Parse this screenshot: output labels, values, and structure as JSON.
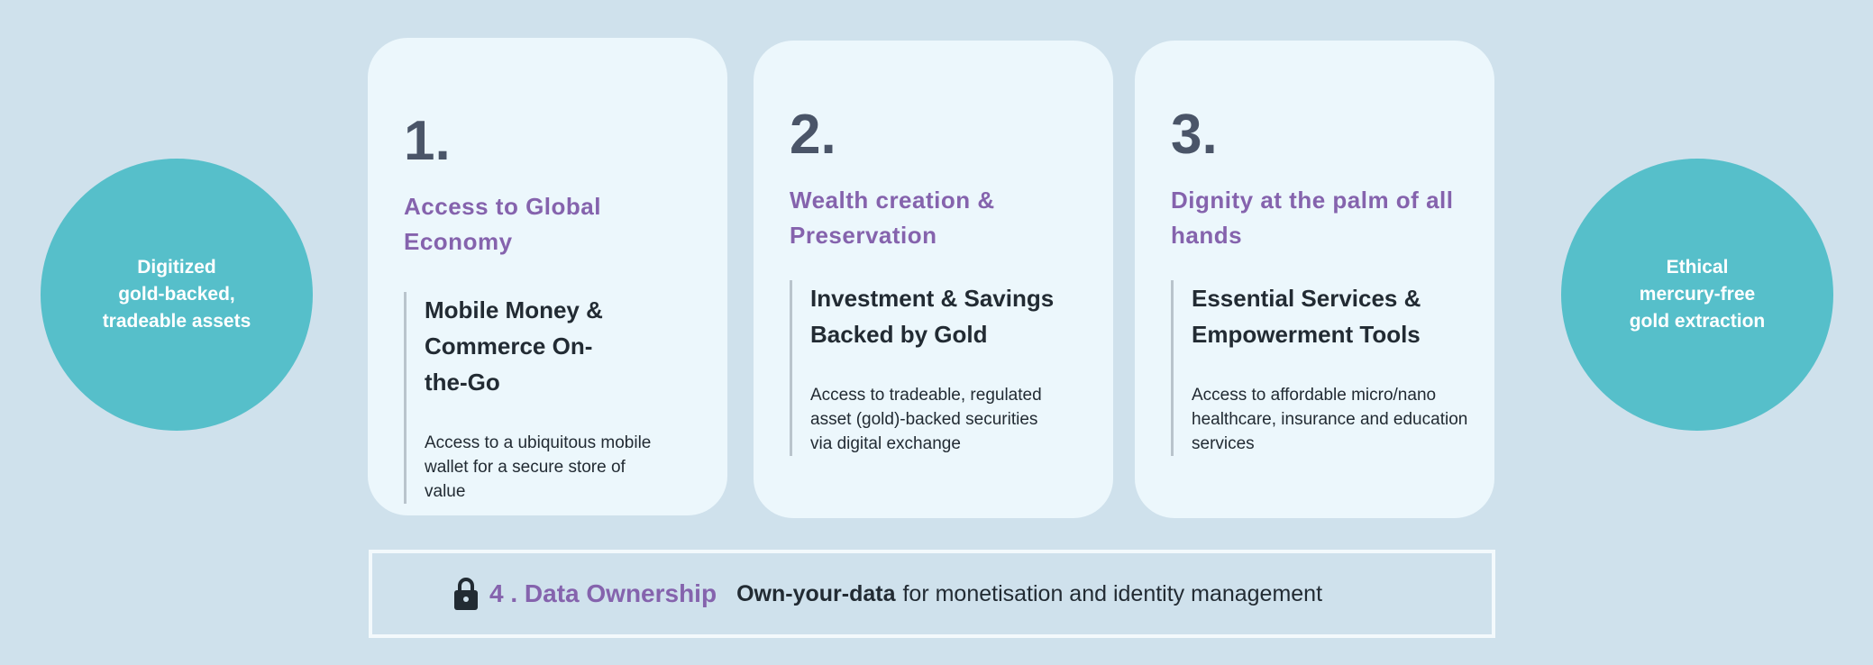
{
  "left_circle": {
    "text": "Digitized\ngold-backed,\ntradeable assets"
  },
  "right_circle": {
    "text": "Ethical\nmercury-free\ngold extraction"
  },
  "cards": [
    {
      "number": "1.",
      "title": "Access to Global Economy",
      "subtitle": "Mobile Money & Commerce On-the-Go",
      "body": "Access to a ubiquitous mobile wallet for a secure store of value"
    },
    {
      "number": "2.",
      "title": "Wealth creation & Preservation",
      "subtitle": "Investment & Savings Backed by Gold",
      "body": "Access to tradeable, regulated asset (gold)-backed securities via digital exchange"
    },
    {
      "number": "3.",
      "title": "Dignity at the palm of all hands",
      "subtitle": "Essential Services & Empowerment Tools",
      "body": "Access to affordable micro/nano healthcare, insurance and education services"
    }
  ],
  "data_ownership": {
    "icon": "lock-icon",
    "title": "4 . Data Ownership",
    "bold_text": "Own-your-data",
    "text": "for monetisation and identity management"
  },
  "colors": {
    "background": "#cfe1ec",
    "card": "#ecf7fc",
    "accent_purple": "#8563ad",
    "circle_teal": "#56bfca"
  }
}
